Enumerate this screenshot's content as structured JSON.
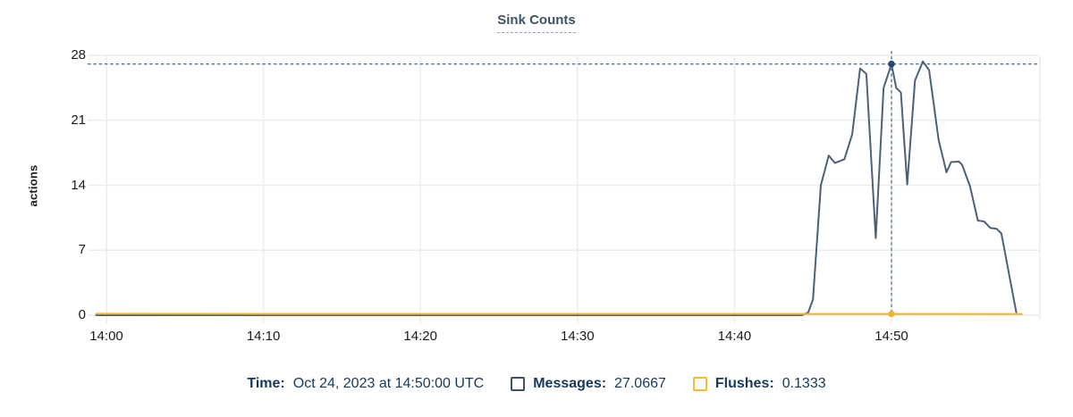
{
  "header": {
    "title": "Sink Counts"
  },
  "tooltip": {
    "time_label": "Time:",
    "time_value": "Oct 24, 2023 at 14:50:00 UTC",
    "series": [
      {
        "label": "Messages:",
        "value": "27.0667",
        "color": "#3d5066"
      },
      {
        "label": "Flushes:",
        "value": "0.1333",
        "color": "#f5bc2b"
      }
    ]
  },
  "colors": {
    "title": "#3c536b",
    "legend_text": "#173a5c",
    "messages_line": "#4e6078",
    "flushes_line": "#f0b429",
    "crosshair": "#4a7b8f",
    "marker": "#27496b",
    "gridline": "#ececec",
    "tick_text": "#1a1a1a"
  },
  "chart_data": {
    "type": "line",
    "title": "Sink Counts",
    "xlabel": "",
    "ylabel": "actions",
    "ylim": [
      0,
      28
    ],
    "y_ticks": [
      0,
      7,
      14,
      21,
      28
    ],
    "x_ticks": [
      {
        "label": "14:00",
        "min": 0
      },
      {
        "label": "14:10",
        "min": 10
      },
      {
        "label": "14:20",
        "min": 20
      },
      {
        "label": "14:30",
        "min": 30
      },
      {
        "label": "14:40",
        "min": 40
      },
      {
        "label": "14:50",
        "min": 50
      }
    ],
    "grid": true,
    "legend_position": "bottom",
    "x_unit": "minutes after 14:00 UTC, Oct 24 2023",
    "series": [
      {
        "name": "Messages",
        "color": "#4e6078",
        "points": [
          [
            -0.65,
            0
          ],
          [
            44.3,
            0
          ],
          [
            44.7,
            0.3
          ],
          [
            45,
            1.7
          ],
          [
            45.5,
            14
          ],
          [
            46,
            17.2
          ],
          [
            46.4,
            16.4
          ],
          [
            47,
            16.8
          ],
          [
            47.5,
            19.5
          ],
          [
            48,
            26.6
          ],
          [
            48.4,
            26
          ],
          [
            49,
            8.3
          ],
          [
            49.5,
            24.5
          ],
          [
            50,
            27.0667
          ],
          [
            50.3,
            24.5
          ],
          [
            50.6,
            24
          ],
          [
            51,
            14.1
          ],
          [
            51.5,
            25.3
          ],
          [
            52,
            27.35
          ],
          [
            52.4,
            26.4
          ],
          [
            53,
            18.9
          ],
          [
            53.5,
            15.4
          ],
          [
            53.8,
            16.5
          ],
          [
            54.3,
            16.55
          ],
          [
            54.5,
            16.2
          ],
          [
            55,
            13.9
          ],
          [
            55.5,
            10.2
          ],
          [
            55.9,
            10.1
          ],
          [
            56.3,
            9.4
          ],
          [
            56.7,
            9.3
          ],
          [
            57,
            8.8
          ],
          [
            57.95,
            0.3
          ]
        ]
      },
      {
        "name": "Flushes",
        "color": "#f0b429",
        "points": [
          [
            -0.65,
            0.15
          ],
          [
            10,
            0.13
          ],
          [
            20,
            0.13
          ],
          [
            30,
            0.13
          ],
          [
            40,
            0.13
          ],
          [
            50,
            0.1333
          ],
          [
            58.3,
            0.12
          ]
        ]
      }
    ],
    "highlight": {
      "time": "Oct 24, 2023 at 14:50:00 UTC",
      "x_min": 50,
      "messages": 27.0667,
      "flushes": 0.1333
    }
  }
}
